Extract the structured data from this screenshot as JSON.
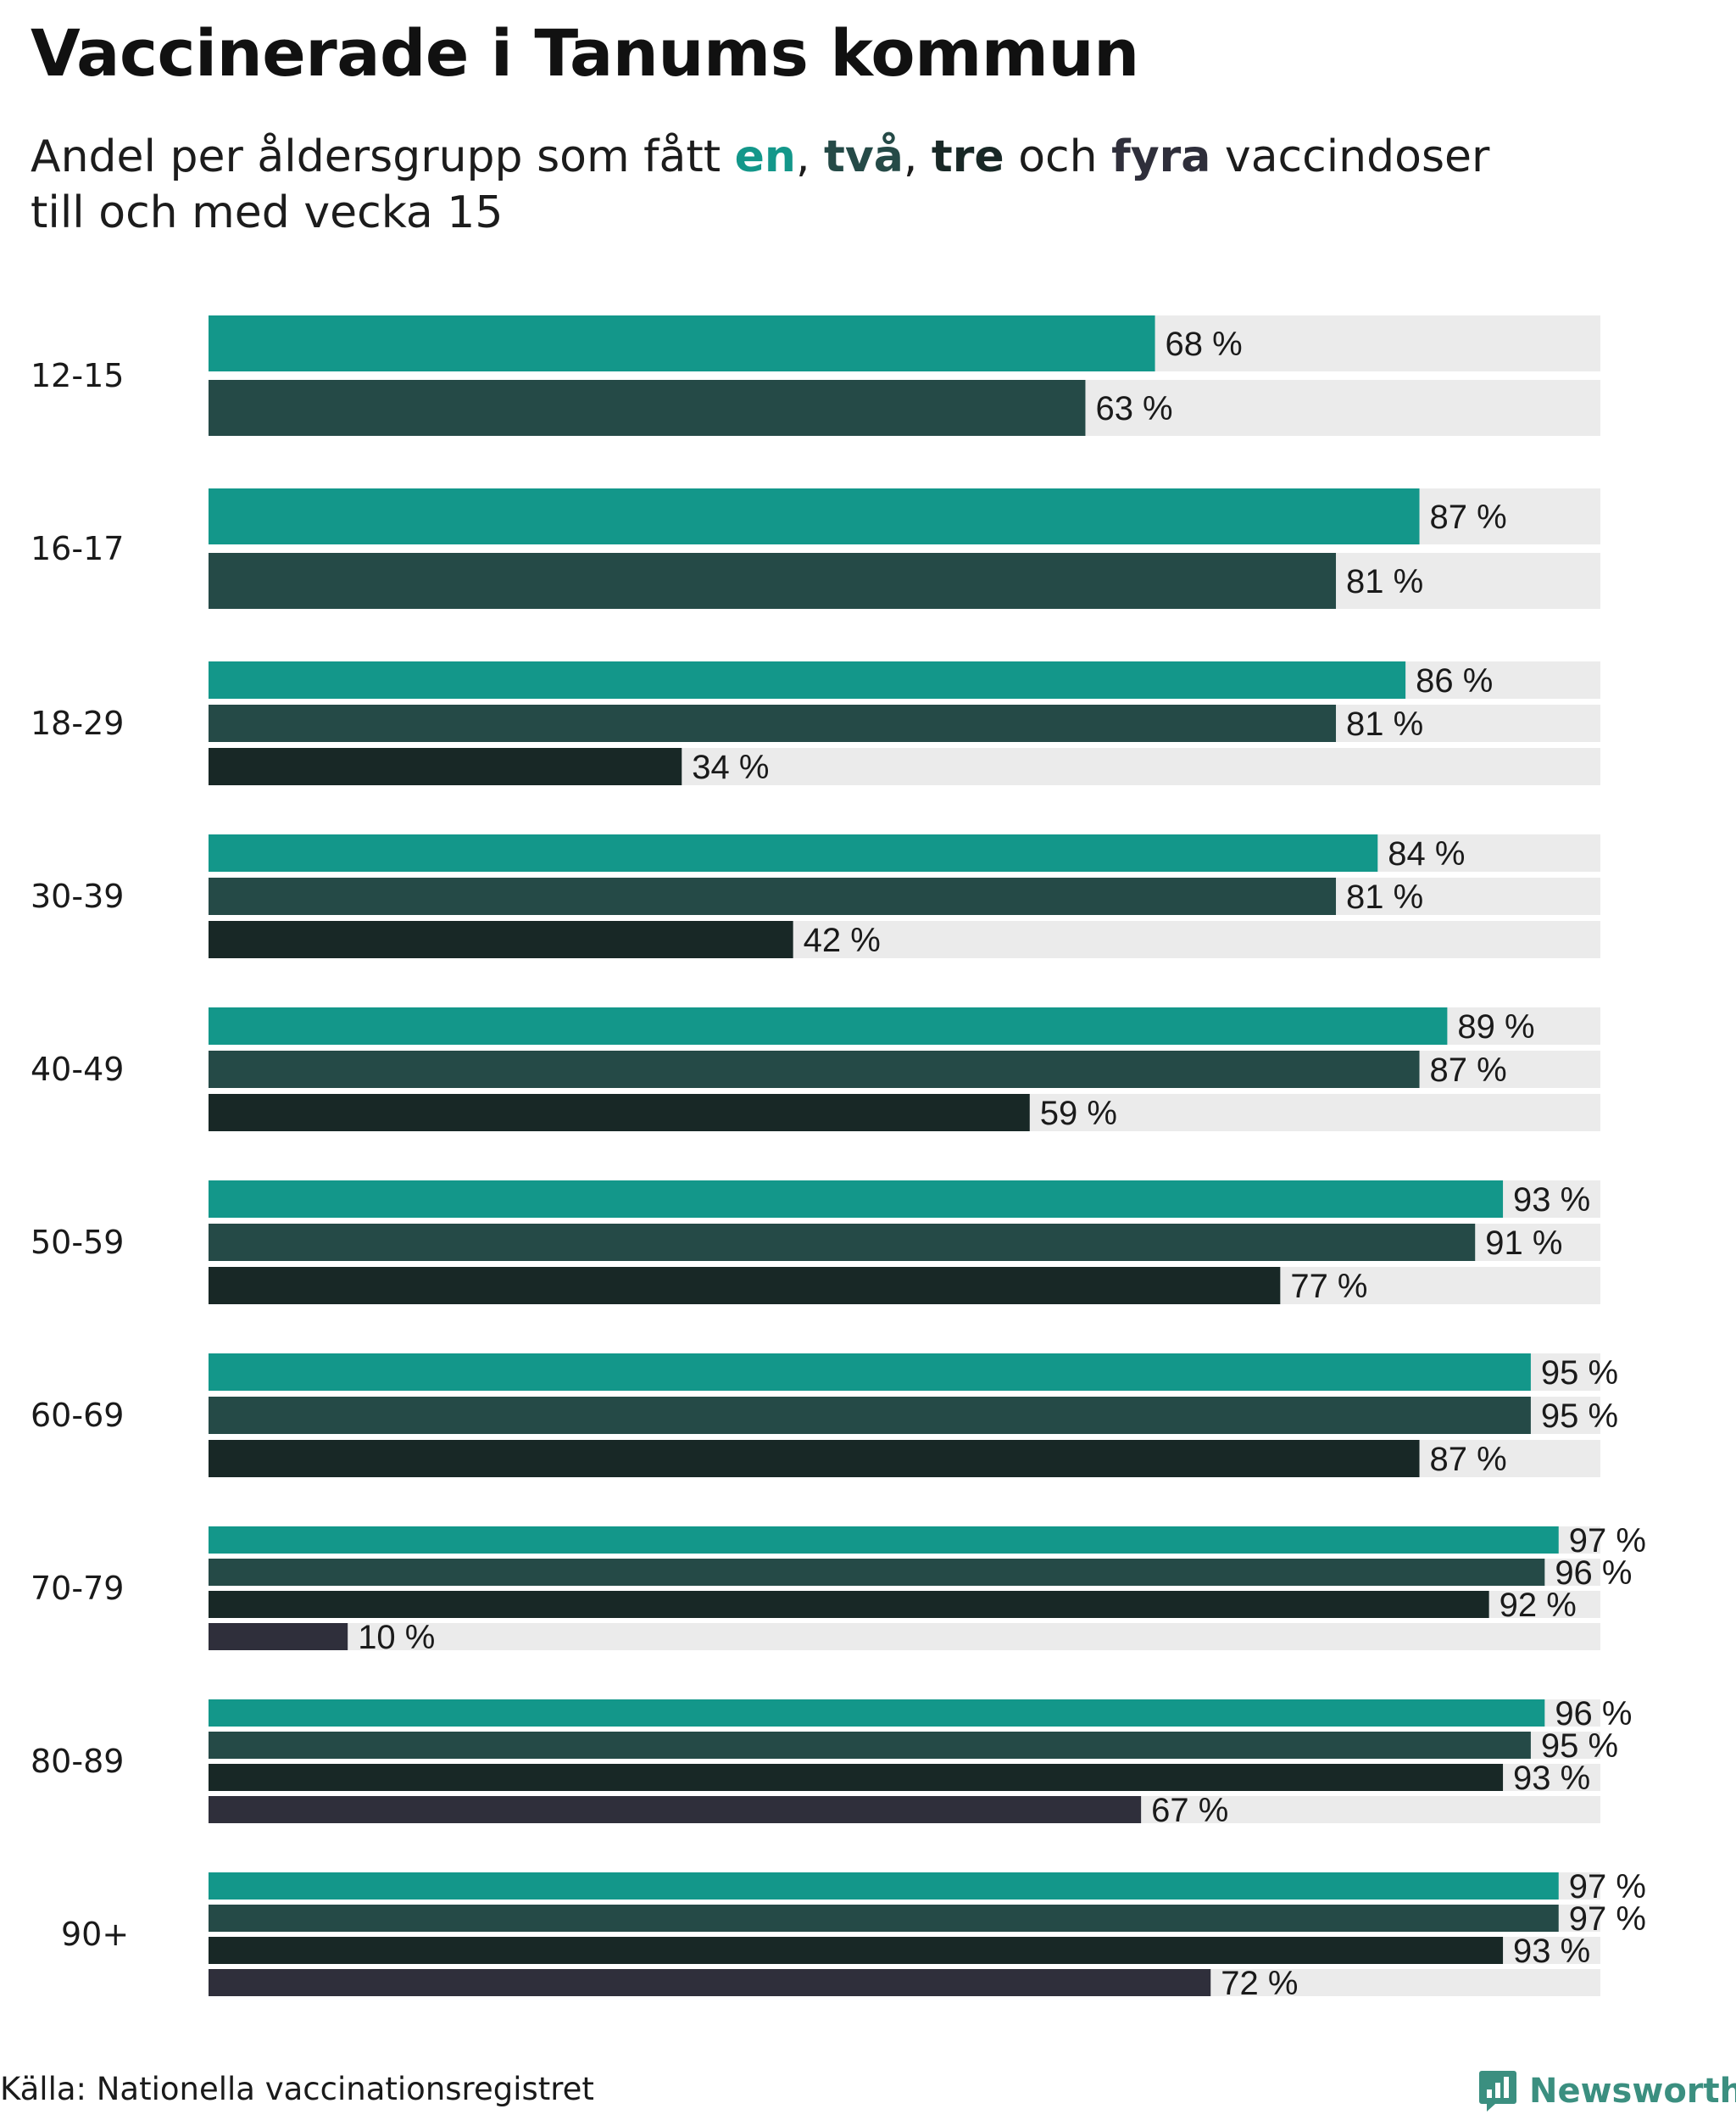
{
  "title": "Vaccinerade i Tanums kommun",
  "subtitle": {
    "prefix": "Andel per åldersgrupp som fått ",
    "w1": "en",
    "sep1": ", ",
    "w2": "två",
    "sep2": ", ",
    "w3": "tre",
    "mid": " och ",
    "w4": "fyra",
    "suffix": " vaccindoser",
    "line2": "till och med vecka 15"
  },
  "colors": {
    "dose1": "#13978a",
    "dose2": "#254a47",
    "dose3": "#182826",
    "dose4": "#2f2f3b",
    "track": "#ebebeb",
    "brand": "#3b8f80"
  },
  "chart_data": {
    "type": "bar",
    "orientation": "horizontal",
    "title": "Vaccinerade i Tanums kommun",
    "xlim": [
      0,
      100
    ],
    "unit": "%",
    "categories": [
      "12-15",
      "16-17",
      "18-29",
      "30-39",
      "40-49",
      "50-59",
      "60-69",
      "70-79",
      "80-89",
      "90+"
    ],
    "series": [
      {
        "name": "en",
        "values": [
          68,
          87,
          86,
          84,
          89,
          93,
          95,
          97,
          96,
          97
        ]
      },
      {
        "name": "två",
        "values": [
          63,
          81,
          81,
          81,
          87,
          91,
          95,
          96,
          95,
          97
        ]
      },
      {
        "name": "tre",
        "values": [
          null,
          null,
          34,
          42,
          59,
          77,
          87,
          92,
          93,
          93
        ]
      },
      {
        "name": "fyra",
        "values": [
          null,
          null,
          null,
          null,
          null,
          null,
          null,
          10,
          67,
          72
        ]
      }
    ],
    "label_suffix": " %"
  },
  "source": "Källa: Nationella vaccinationsregistret",
  "brand": "Newsworthy"
}
